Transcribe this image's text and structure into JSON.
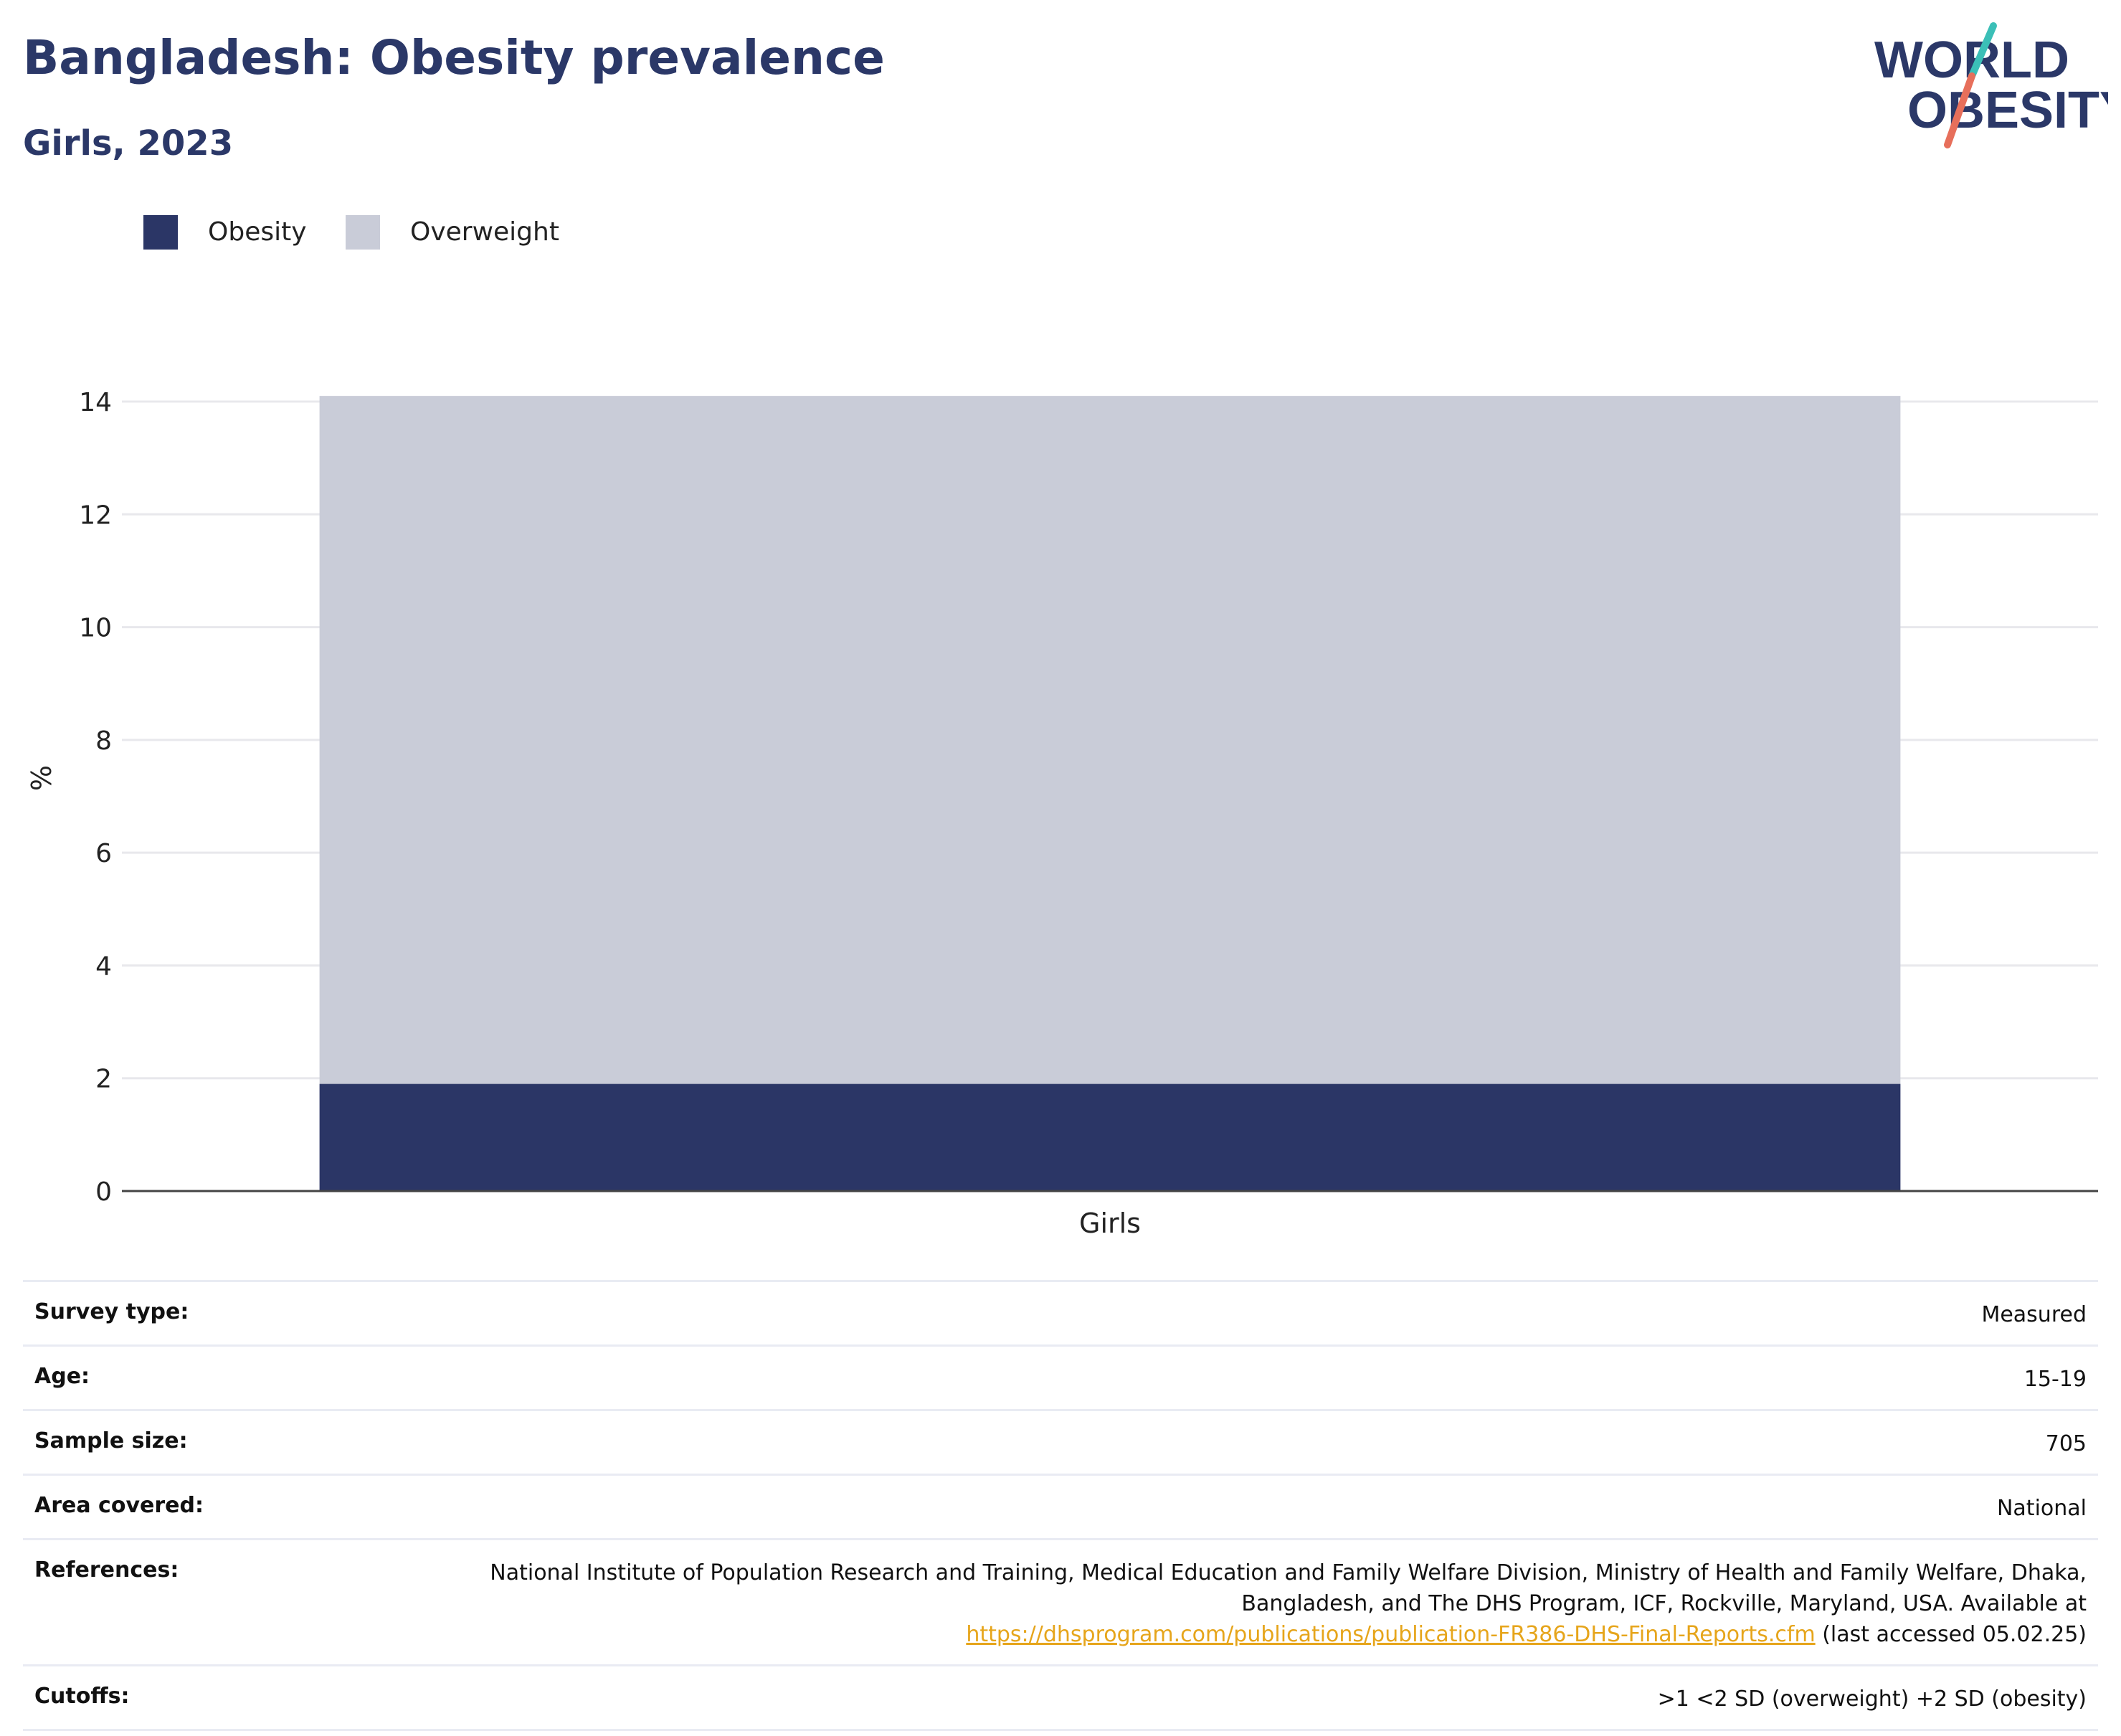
{
  "header": {
    "title": "Bangladesh: Obesity prevalence",
    "subtitle": "Girls, 2023"
  },
  "logo": {
    "line1": "WORLD",
    "line2": "OBESITY"
  },
  "legend": {
    "items": [
      {
        "label": "Obesity",
        "color": "#2b3666"
      },
      {
        "label": "Overweight",
        "color": "#c9ccd8"
      }
    ]
  },
  "chart_data": {
    "type": "bar",
    "stacked": true,
    "categories": [
      "Girls"
    ],
    "series": [
      {
        "name": "Obesity",
        "values": [
          1.9
        ],
        "color": "#2b3666"
      },
      {
        "name": "Overweight",
        "values": [
          12.2
        ],
        "color": "#c9ccd8"
      }
    ],
    "ylabel": "%",
    "xlabel": "",
    "ylim": [
      0,
      14
    ],
    "yticks": [
      0,
      2,
      4,
      6,
      8,
      10,
      12,
      14
    ],
    "grid": true,
    "legend_position": "top-left"
  },
  "info_table": {
    "survey_type_label": "Survey type:",
    "survey_type_value": "Measured",
    "age_label": "Age:",
    "age_value": "15-19",
    "sample_size_label": "Sample size:",
    "sample_size_value": "705",
    "area_label": "Area covered:",
    "area_value": "National",
    "references_label": "References:",
    "references_text": "National Institute of Population Research and Training, Medical Education and Family Welfare Division, Ministry of Health and Family Welfare, Dhaka, Bangladesh, and The DHS Program, ICF, Rockville, Maryland, USA. Available at",
    "references_link": "https://dhsprogram.com/publications/publication-FR386-DHS-Final-Reports.cfm",
    "references_suffix": "(last accessed 05.02.25)",
    "cutoffs_label": "Cutoffs:",
    "cutoffs_value": ">1 <2 SD (overweight) +2 SD (obesity)"
  }
}
